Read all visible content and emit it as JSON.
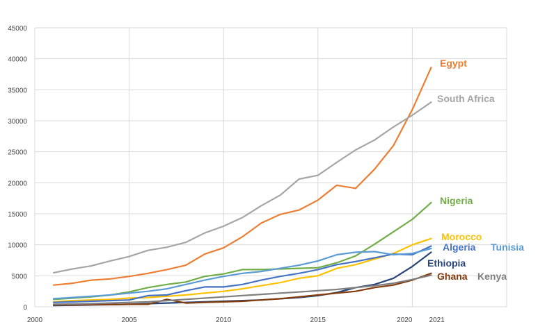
{
  "chart_data": {
    "type": "line",
    "title": "",
    "xlabel": "",
    "ylabel": "",
    "xlim": [
      2000,
      2025
    ],
    "ylim": [
      0,
      45000
    ],
    "grid": true,
    "legend": "direct labels at line ends",
    "x_ticks": [
      "2000",
      "2005",
      "2010",
      "2015",
      "2020",
      "2021"
    ],
    "y_ticks": [
      "0",
      "5000",
      "10000",
      "15000",
      "20000",
      "25000",
      "30000",
      "35000",
      "40000",
      "45000"
    ],
    "x": [
      2001,
      2002,
      2003,
      2004,
      2005,
      2006,
      2007,
      2008,
      2009,
      2010,
      2011,
      2012,
      2013,
      2014,
      2015,
      2016,
      2017,
      2018,
      2019,
      2020,
      2021
    ],
    "series": [
      {
        "name": "Egypt",
        "color": "#ED7D31",
        "values": [
          3500,
          3800,
          4300,
          4500,
          4900,
          5400,
          6000,
          6700,
          8500,
          9500,
          11300,
          13500,
          14900,
          15600,
          17200,
          19600,
          19100,
          22200,
          26000,
          31800,
          38600
        ]
      },
      {
        "name": "South Africa",
        "color": "#A5A5A5",
        "values": [
          5500,
          6100,
          6600,
          7400,
          8100,
          9100,
          9600,
          10400,
          11900,
          13000,
          14400,
          16300,
          18000,
          20600,
          21200,
          23300,
          25300,
          26900,
          29000,
          30900,
          33000
        ]
      },
      {
        "name": "Nigeria",
        "color": "#70AD47",
        "values": [
          1200,
          1400,
          1600,
          1900,
          2400,
          3100,
          3600,
          4000,
          4900,
          5300,
          6000,
          6000,
          6100,
          6200,
          6300,
          7100,
          8200,
          10100,
          12100,
          14100,
          16800
        ]
      },
      {
        "name": "Morocco",
        "color": "#FFC000",
        "values": [
          800,
          1000,
          1100,
          1200,
          1400,
          1500,
          1700,
          1900,
          2200,
          2500,
          2900,
          3400,
          3900,
          4600,
          5000,
          6200,
          6800,
          7700,
          8600,
          10000,
          11000
        ]
      },
      {
        "name": "Algeria",
        "color": "#4472C4",
        "values": [
          700,
          800,
          900,
          1000,
          1100,
          1800,
          1900,
          2600,
          3200,
          3200,
          3600,
          4300,
          4900,
          5400,
          6000,
          6800,
          7300,
          7900,
          8500,
          8400,
          9800
        ]
      },
      {
        "name": "Tunisia",
        "color": "#5B9BD5",
        "values": [
          1300,
          1500,
          1700,
          1900,
          2200,
          2500,
          2900,
          3600,
          4300,
          4900,
          5400,
          5700,
          6200,
          6700,
          7400,
          8400,
          8800,
          8900,
          8400,
          8600,
          9400
        ]
      },
      {
        "name": "Ethiopia",
        "color": "#264478",
        "values": [
          200,
          250,
          300,
          350,
          400,
          500,
          600,
          700,
          800,
          900,
          1000,
          1100,
          1300,
          1500,
          1800,
          2300,
          3100,
          3600,
          4600,
          6500,
          8800
        ]
      },
      {
        "name": "Ghana",
        "color": "#843C0C",
        "values": [
          300,
          300,
          350,
          350,
          400,
          400,
          1200,
          600,
          700,
          800,
          900,
          1100,
          1300,
          1600,
          1900,
          2200,
          2500,
          3100,
          3500,
          4300,
          5400
        ]
      },
      {
        "name": "Kenya",
        "color": "#7F7F7F",
        "values": [
          400,
          450,
          500,
          600,
          700,
          800,
          1000,
          1200,
          1400,
          1600,
          1800,
          2000,
          2200,
          2400,
          2600,
          2800,
          3100,
          3400,
          3800,
          4400,
          5100
        ]
      }
    ]
  }
}
